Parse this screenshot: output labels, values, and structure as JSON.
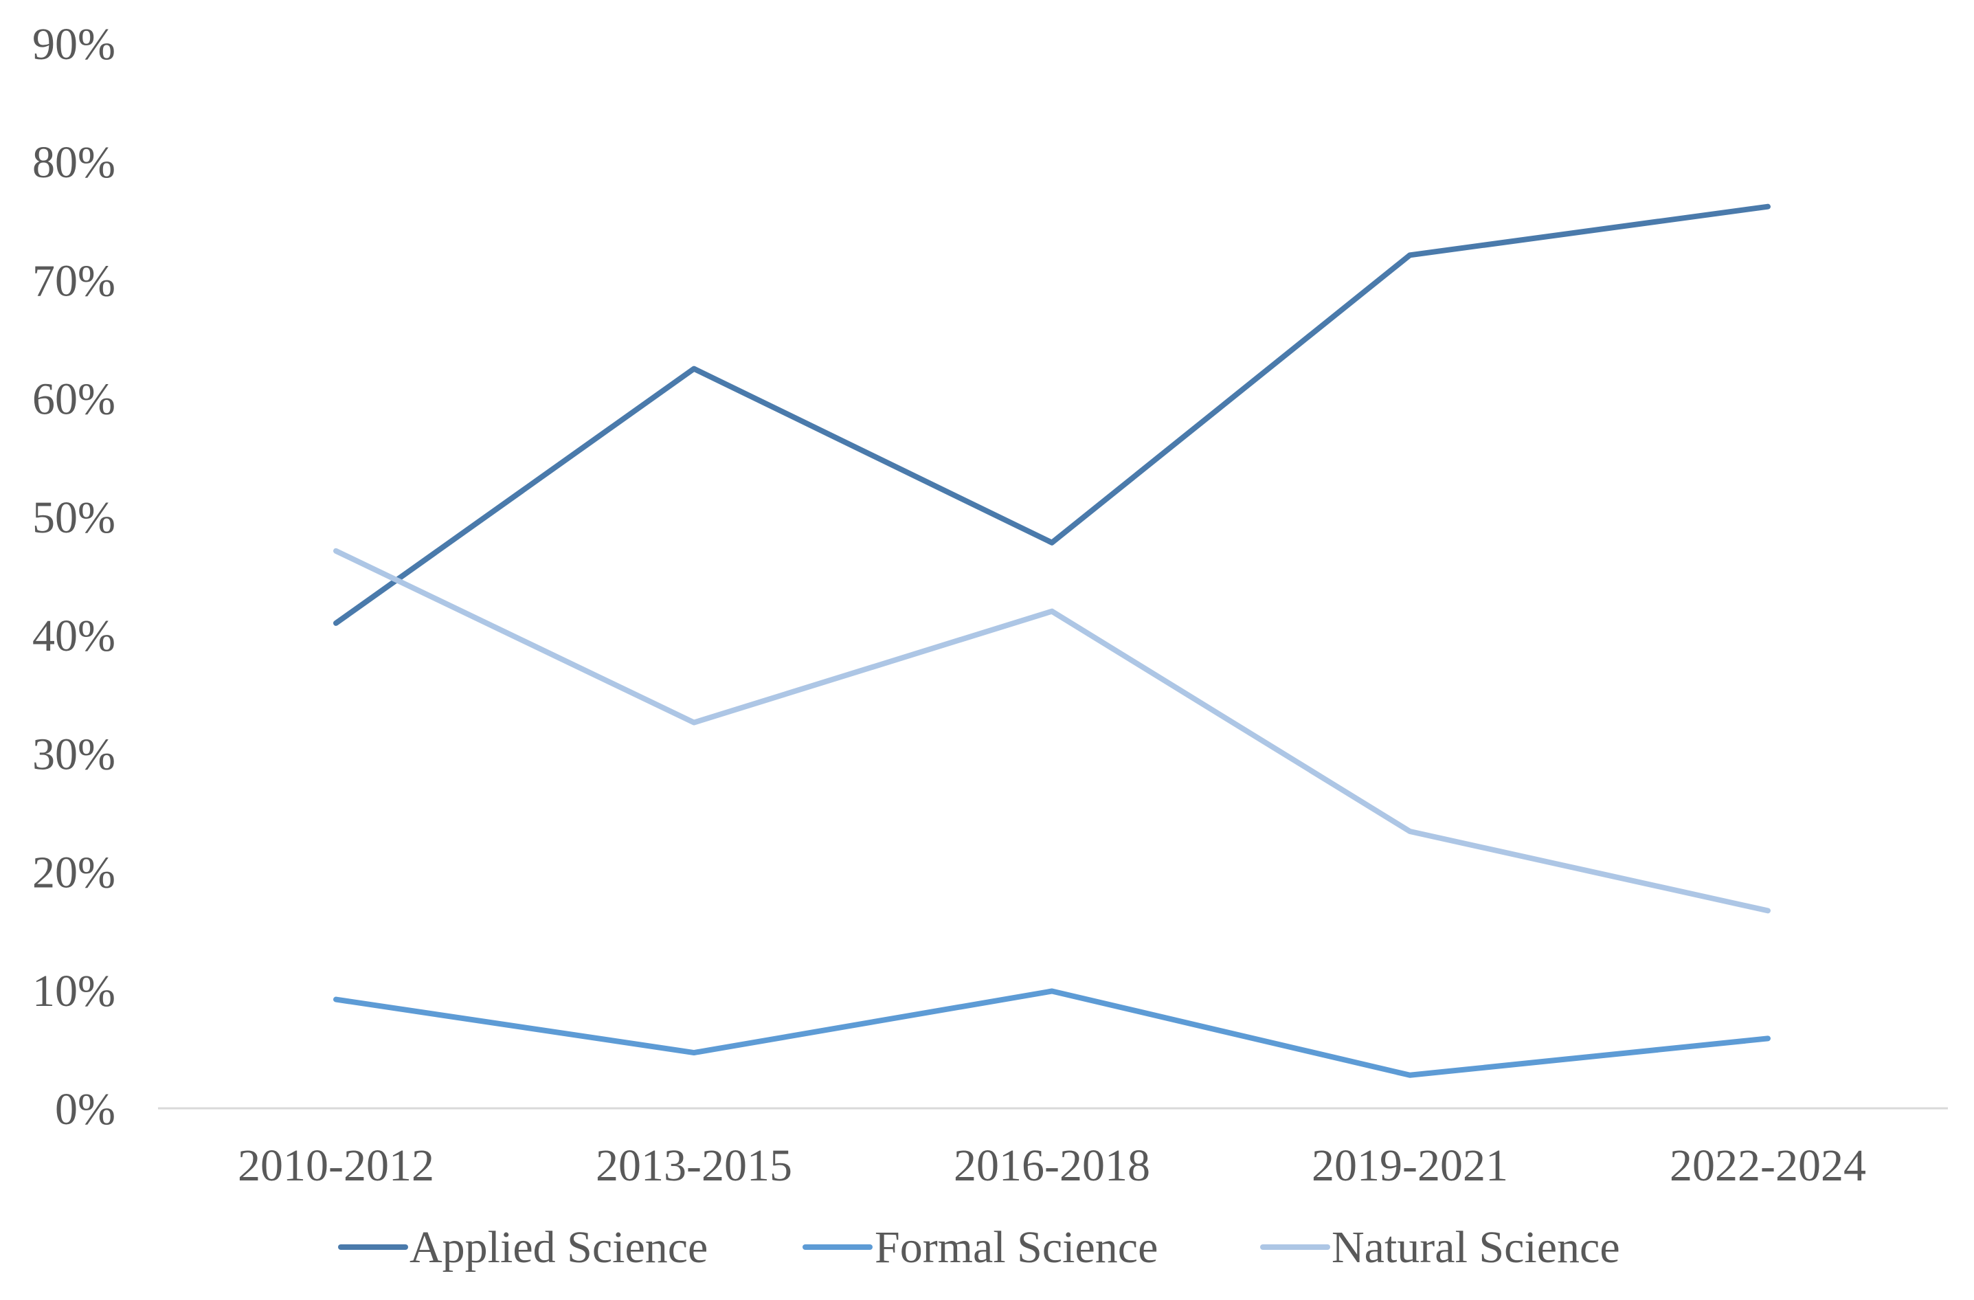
{
  "chart_data": {
    "type": "line",
    "title": "",
    "xlabel": "",
    "ylabel": "",
    "categories": [
      "2010-2012",
      "2013-2015",
      "2016-2018",
      "2019-2021",
      "2022-2024"
    ],
    "ylim": [
      0,
      90
    ],
    "yticks": [
      0,
      10,
      20,
      30,
      40,
      50,
      60,
      70,
      80,
      90
    ],
    "ytick_labels": [
      "0%",
      "10%",
      "20%",
      "30%",
      "40%",
      "50%",
      "60%",
      "70%",
      "80%",
      "90%"
    ],
    "grid": false,
    "legend_position": "bottom",
    "series": [
      {
        "name": "Applied Science",
        "color": "#4a7aab",
        "values": [
          41,
          62.5,
          47.8,
          72.1,
          76.2
        ]
      },
      {
        "name": "Formal Science",
        "color": "#5d9bd5",
        "values": [
          9.2,
          4.7,
          9.9,
          2.8,
          5.9
        ]
      },
      {
        "name": "Natural Science",
        "color": "#adc6e5",
        "values": [
          47.1,
          32.6,
          42,
          23.4,
          16.7
        ]
      }
    ]
  }
}
